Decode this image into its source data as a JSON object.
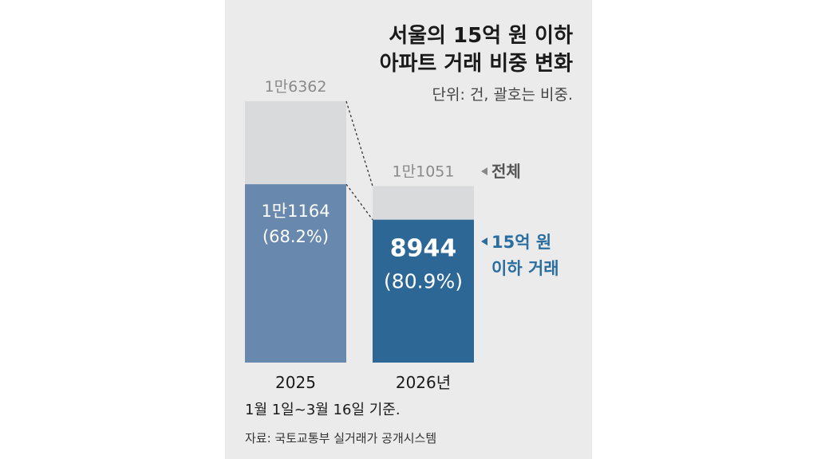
{
  "chart_data": {
    "type": "bar",
    "title_lines": [
      "서울의 15억 원 이하",
      "아파트 거래 비중 변화"
    ],
    "unit_note": "단위: 건, 괄호는 비중.",
    "categories": [
      "2025",
      "2026년"
    ],
    "series": [
      {
        "name": "전체",
        "values": [
          16362,
          11051
        ],
        "labels": [
          "1만6362",
          "1만1051"
        ],
        "color": "#d9dadc"
      },
      {
        "name": "15억 원 이하 거래",
        "legend_lines": [
          "15억 원",
          "이하 거래"
        ],
        "values": [
          11164,
          8944
        ],
        "labels": [
          "1만1164",
          "8944"
        ],
        "share_labels": [
          "(68.2%)",
          "(80.9%)"
        ],
        "colors": [
          "#6889ad",
          "#2d6796"
        ]
      }
    ],
    "ylim": [
      0,
      16362
    ],
    "grid": false,
    "legend": "right"
  },
  "footnote": "1월 1일~3월 16일 기준.",
  "source": "자료: 국토교통부 실거래가 공개시스템",
  "colors": {
    "arrow_gray": "#888888",
    "arrow_blue": "#2a6ea0",
    "dash": "#333333"
  }
}
